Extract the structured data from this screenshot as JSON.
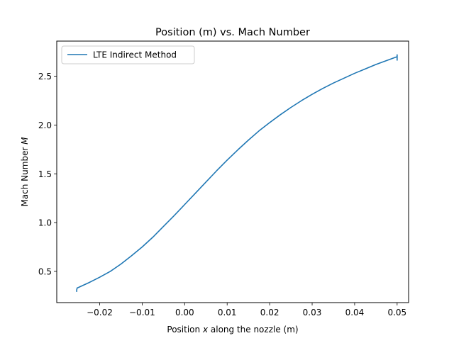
{
  "chart_data": {
    "type": "line",
    "title": "Position (m) vs. Mach Number",
    "xlabel_prefix": "Position ",
    "xlabel_var": "x",
    "xlabel_suffix": " along the nozzle (m)",
    "ylabel_prefix": "Mach Number ",
    "ylabel_var": "M",
    "xlim": [
      -0.0301,
      0.0527
    ],
    "ylim": [
      0.18,
      2.86
    ],
    "xticks": [
      -0.02,
      -0.01,
      0.0,
      0.01,
      0.02,
      0.03,
      0.04,
      0.05
    ],
    "xtick_labels": [
      "−0.02",
      "−0.01",
      "0.00",
      "0.01",
      "0.02",
      "0.03",
      "0.04",
      "0.05"
    ],
    "yticks": [
      0.5,
      1.0,
      1.5,
      2.0,
      2.5
    ],
    "ytick_labels": [
      "0.5",
      "1.0",
      "1.5",
      "2.0",
      "2.5"
    ],
    "grid": false,
    "legend_position": "upper-left",
    "series": [
      {
        "name": "LTE Indirect Method",
        "color": "#1f77b4",
        "x": [
          -0.0254,
          -0.0254,
          -0.0253,
          -0.025,
          -0.0225,
          -0.02,
          -0.0175,
          -0.015,
          -0.0125,
          -0.01,
          -0.0075,
          -0.005,
          -0.0025,
          0.0,
          0.0025,
          0.005,
          0.0075,
          0.01,
          0.0125,
          0.015,
          0.0175,
          0.02,
          0.0225,
          0.025,
          0.0275,
          0.03,
          0.0325,
          0.035,
          0.0375,
          0.04,
          0.0425,
          0.045,
          0.0475,
          0.05,
          0.05,
          0.05
        ],
        "y": [
          0.29,
          0.31,
          0.33,
          0.335,
          0.385,
          0.44,
          0.5,
          0.575,
          0.66,
          0.75,
          0.85,
          0.96,
          1.07,
          1.185,
          1.3,
          1.415,
          1.53,
          1.64,
          1.745,
          1.845,
          1.94,
          2.025,
          2.105,
          2.18,
          2.25,
          2.315,
          2.375,
          2.43,
          2.48,
          2.53,
          2.575,
          2.62,
          2.66,
          2.7,
          2.72,
          2.66
        ]
      }
    ]
  }
}
